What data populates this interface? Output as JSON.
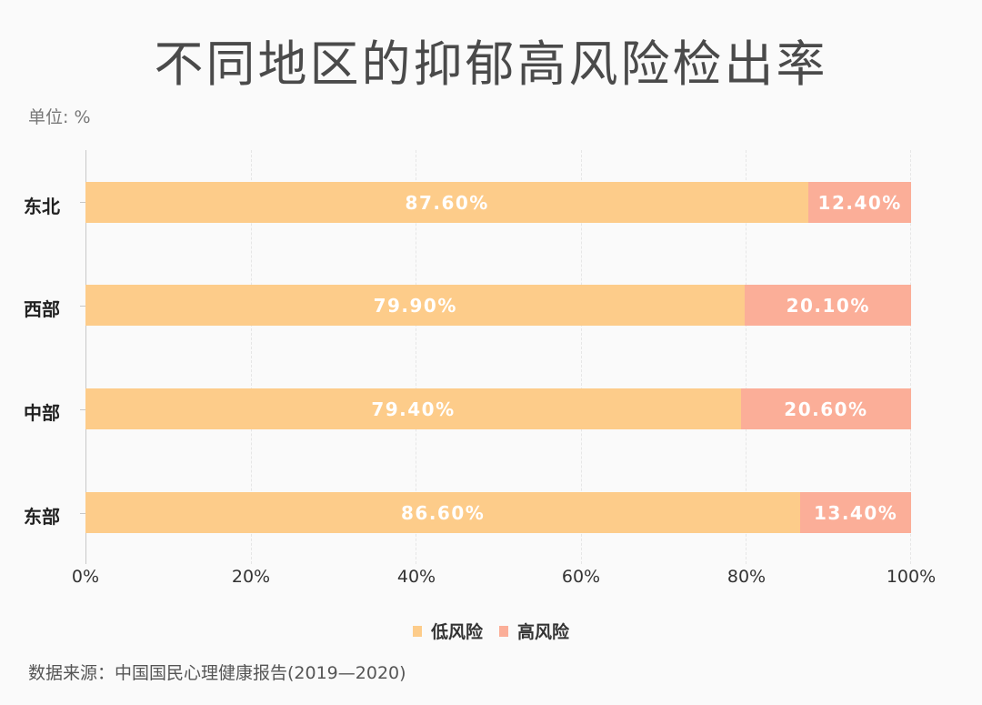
{
  "header": {
    "title": "不同地区的抑郁高风险检出率",
    "unit": "单位: %"
  },
  "colors": {
    "low_risk": "#fdcc8a",
    "high_risk": "#fbae98",
    "background": "#fafafa"
  },
  "chart": {
    "rows": [
      {
        "label": "东北",
        "low": 87.6,
        "high": 12.4,
        "low_label": "87.60%",
        "high_label": "12.40%"
      },
      {
        "label": "西部",
        "low": 79.9,
        "high": 20.1,
        "low_label": "79.90%",
        "high_label": "20.10%"
      },
      {
        "label": "中部",
        "low": 79.4,
        "high": 20.6,
        "low_label": "79.40%",
        "high_label": "20.60%"
      },
      {
        "label": "东部",
        "low": 86.6,
        "high": 13.4,
        "low_label": "86.60%",
        "high_label": "13.40%"
      }
    ],
    "x_ticks": [
      "0%",
      "20%",
      "40%",
      "60%",
      "80%",
      "100%"
    ]
  },
  "legend": {
    "items": [
      {
        "label": "低风险"
      },
      {
        "label": "高风险"
      }
    ]
  },
  "footer": {
    "source": "数据来源：中国国民心理健康报告(2019—2020)"
  },
  "chart_data": {
    "type": "bar",
    "orientation": "horizontal",
    "stacked": true,
    "title": "不同地区的抑郁高风险检出率",
    "subtitle": "单位: %",
    "categories": [
      "东北",
      "西部",
      "中部",
      "东部"
    ],
    "series": [
      {
        "name": "低风险",
        "values": [
          87.6,
          79.9,
          79.4,
          86.6
        ],
        "color": "#fdcc8a"
      },
      {
        "name": "高风险",
        "values": [
          12.4,
          20.1,
          20.6,
          13.4
        ],
        "color": "#fbae98"
      }
    ],
    "xlabel": "",
    "ylabel": "",
    "xlim": [
      0,
      100
    ],
    "x_tick_labels": [
      "0%",
      "20%",
      "40%",
      "60%",
      "80%",
      "100%"
    ],
    "grid": true,
    "legend_position": "bottom",
    "source": "数据来源：中国国民心理健康报告(2019—2020)"
  }
}
